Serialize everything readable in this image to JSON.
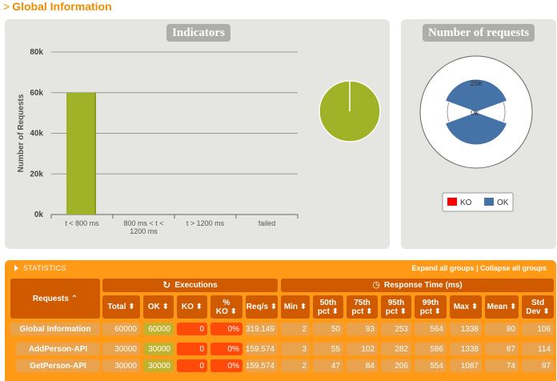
{
  "section": {
    "title": "Global Information",
    "chevron": ">"
  },
  "indicators": {
    "header": "Indicators",
    "chart_data": {
      "type": "bar",
      "ylabel": "Number of Requests",
      "yticks": [
        "0k",
        "20k",
        "40k",
        "60k",
        "80k"
      ],
      "ylim": [
        0,
        80000
      ],
      "categories": [
        "t < 800 ms",
        "800 ms < t < 1200 ms",
        "t > 1200 ms",
        "failed"
      ],
      "category_lines": [
        [
          "t < 800 ms"
        ],
        [
          "800 ms < t <",
          "1200 ms"
        ],
        [
          "t > 1200 ms"
        ],
        [
          "failed"
        ]
      ],
      "values": [
        60000,
        0,
        0,
        0
      ],
      "colors": [
        "#a0b228",
        "#f1c40f",
        "#e67e22",
        "#ff0000"
      ]
    },
    "pie": {
      "values": [
        60000
      ],
      "color": "#a0b228"
    }
  },
  "requests_panel": {
    "header": "Number of requests",
    "chart_data": {
      "type": "pie",
      "rings": [
        "25k",
        "0k"
      ],
      "legend": [
        {
          "label": "KO",
          "color": "#ff0000"
        },
        {
          "label": "OK",
          "color": "#4572a7"
        }
      ],
      "colors": {
        "ok": "#4572a7",
        "ko": "#ff0000"
      }
    }
  },
  "statistics": {
    "title": "STATISTICS",
    "expand_label": "Expand all groups",
    "separator": " | ",
    "collapse_label": "Collapse all groups",
    "requests_header": "Requests ⌃",
    "executions_header": "Executions",
    "response_header": "Response Time (ms)",
    "columns": [
      [
        "Total ⬍"
      ],
      [
        "OK ⬍"
      ],
      [
        "KO ⬍"
      ],
      [
        "%",
        "KO ⬍"
      ],
      [
        "Req/s ⬍"
      ],
      [
        "Min ⬍"
      ],
      [
        "50th",
        "pct ⬍"
      ],
      [
        "75th",
        "pct ⬍"
      ],
      [
        "95th",
        "pct ⬍"
      ],
      [
        "99th",
        "pct ⬍"
      ],
      [
        "Max ⬍"
      ],
      [
        "Mean ⬍"
      ],
      [
        "Std",
        "Dev ⬍"
      ]
    ],
    "rows": [
      {
        "name": "Global Information",
        "values": [
          "60000",
          "60000",
          "0",
          "0%",
          "319.149",
          "2",
          "50",
          "93",
          "253",
          "564",
          "1338",
          "80",
          "106"
        ]
      },
      {
        "name": "AddPerson-API",
        "values": [
          "30000",
          "30000",
          "0",
          "0%",
          "159.574",
          "3",
          "55",
          "102",
          "282",
          "586",
          "1338",
          "87",
          "114"
        ]
      },
      {
        "name": "GetPerson-API",
        "values": [
          "30000",
          "30000",
          "0",
          "0%",
          "159.574",
          "2",
          "47",
          "84",
          "206",
          "554",
          "1087",
          "74",
          "97"
        ]
      }
    ]
  }
}
